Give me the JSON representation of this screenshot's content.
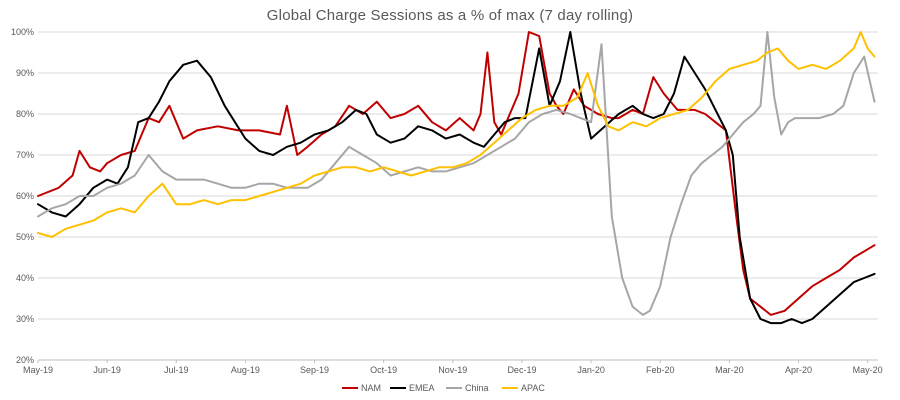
{
  "chart_data": {
    "type": "line",
    "title": "Global Charge Sessions as a % of max (7 day rolling)",
    "xlabel": "",
    "ylabel": "",
    "ylim": [
      20,
      100
    ],
    "y_ticks": [
      "20%",
      "30%",
      "40%",
      "50%",
      "60%",
      "70%",
      "80%",
      "90%",
      "100%"
    ],
    "y_tick_values": [
      20,
      30,
      40,
      50,
      60,
      70,
      80,
      90,
      100
    ],
    "x_range": [
      0,
      12.15
    ],
    "x_ticks": [
      "May-19",
      "Jun-19",
      "Jul-19",
      "Aug-19",
      "Sep-19",
      "Oct-19",
      "Nov-19",
      "Dec-19",
      "Jan-20",
      "Feb-20",
      "Mar-20",
      "Apr-20",
      "May-20"
    ],
    "x_tick_values": [
      0,
      1,
      2,
      3,
      4,
      5,
      6,
      7,
      8,
      9,
      10,
      11,
      12
    ],
    "grid": true,
    "legend_position": "bottom",
    "series": [
      {
        "name": "NAM",
        "color": "#c00000",
        "x": [
          0,
          0.3,
          0.5,
          0.6,
          0.75,
          0.9,
          1.0,
          1.2,
          1.4,
          1.6,
          1.75,
          1.9,
          2.1,
          2.3,
          2.6,
          2.9,
          3.2,
          3.5,
          3.6,
          3.75,
          3.9,
          4.1,
          4.3,
          4.5,
          4.7,
          4.9,
          5.1,
          5.3,
          5.5,
          5.7,
          5.9,
          6.1,
          6.3,
          6.4,
          6.5,
          6.6,
          6.7,
          6.8,
          6.95,
          7.1,
          7.25,
          7.4,
          7.5,
          7.6,
          7.75,
          7.9,
          8.1,
          8.3,
          8.4,
          8.5,
          8.6,
          8.75,
          8.9,
          9.05,
          9.25,
          9.5,
          9.65,
          9.8,
          9.95,
          10.1,
          10.2,
          10.3,
          10.45,
          10.6,
          10.8,
          11.0,
          11.2,
          11.4,
          11.6,
          11.8,
          12.0,
          12.1
        ],
        "values": [
          60,
          62,
          65,
          71,
          67,
          66,
          68,
          70,
          71,
          79,
          78,
          82,
          74,
          76,
          77,
          76,
          76,
          75,
          82,
          70,
          72,
          75,
          77,
          82,
          80,
          83,
          79,
          80,
          82,
          78,
          76,
          79,
          76,
          80,
          95,
          78,
          75,
          79,
          85,
          100,
          99,
          85,
          82,
          80,
          86,
          82,
          80,
          79,
          79,
          80,
          81,
          80,
          89,
          85,
          81,
          81,
          80,
          78,
          76,
          55,
          42,
          35,
          33,
          31,
          32,
          35,
          38,
          40,
          42,
          45,
          47,
          48
        ]
      },
      {
        "name": "EMEA",
        "color": "#000000",
        "x": [
          0,
          0.2,
          0.4,
          0.6,
          0.8,
          1.0,
          1.15,
          1.3,
          1.45,
          1.6,
          1.75,
          1.9,
          2.1,
          2.3,
          2.5,
          2.7,
          2.85,
          3.0,
          3.2,
          3.4,
          3.6,
          3.8,
          4.0,
          4.2,
          4.4,
          4.6,
          4.75,
          4.9,
          5.1,
          5.3,
          5.5,
          5.7,
          5.9,
          6.1,
          6.3,
          6.45,
          6.6,
          6.75,
          6.9,
          7.05,
          7.25,
          7.4,
          7.55,
          7.7,
          7.85,
          8.0,
          8.2,
          8.4,
          8.6,
          8.75,
          8.9,
          9.05,
          9.2,
          9.35,
          9.5,
          9.65,
          9.8,
          9.95,
          10.05,
          10.15,
          10.3,
          10.45,
          10.6,
          10.75,
          10.9,
          11.05,
          11.2,
          11.4,
          11.6,
          11.8,
          11.95,
          12.1
        ],
        "values": [
          58,
          56,
          55,
          58,
          62,
          64,
          63,
          67,
          78,
          79,
          83,
          88,
          92,
          93,
          89,
          82,
          78,
          74,
          71,
          70,
          72,
          73,
          75,
          76,
          78,
          81,
          80,
          75,
          73,
          74,
          77,
          76,
          74,
          75,
          73,
          72,
          75,
          78,
          79,
          79,
          96,
          82,
          88,
          100,
          85,
          74,
          77,
          80,
          82,
          80,
          79,
          80,
          85,
          94,
          90,
          86,
          81,
          76,
          70,
          50,
          35,
          30,
          29,
          29,
          30,
          29,
          30,
          33,
          36,
          39,
          40,
          41
        ]
      },
      {
        "name": "China",
        "color": "#a6a6a6",
        "x": [
          0,
          0.2,
          0.4,
          0.6,
          0.8,
          1.0,
          1.2,
          1.4,
          1.6,
          1.8,
          2.0,
          2.2,
          2.4,
          2.6,
          2.8,
          3.0,
          3.2,
          3.4,
          3.6,
          3.75,
          3.9,
          4.1,
          4.3,
          4.5,
          4.7,
          4.9,
          5.1,
          5.3,
          5.5,
          5.7,
          5.9,
          6.1,
          6.3,
          6.5,
          6.7,
          6.9,
          7.1,
          7.3,
          7.5,
          7.7,
          7.85,
          8.0,
          8.15,
          8.3,
          8.45,
          8.6,
          8.75,
          8.85,
          9.0,
          9.15,
          9.3,
          9.45,
          9.6,
          9.75,
          9.9,
          10.05,
          10.2,
          10.35,
          10.45,
          10.55,
          10.65,
          10.75,
          10.85,
          10.95,
          11.1,
          11.3,
          11.5,
          11.65,
          11.8,
          11.95,
          12.1
        ],
        "values": [
          55,
          57,
          58,
          60,
          60,
          62,
          63,
          65,
          70,
          66,
          64,
          64,
          64,
          63,
          62,
          62,
          63,
          63,
          62,
          62,
          62,
          64,
          68,
          72,
          70,
          68,
          65,
          66,
          67,
          66,
          66,
          67,
          68,
          70,
          72,
          74,
          78,
          80,
          81,
          80,
          79,
          78,
          97,
          55,
          40,
          33,
          31,
          32,
          38,
          50,
          58,
          65,
          68,
          70,
          72,
          75,
          78,
          80,
          82,
          100,
          84,
          75,
          78,
          79,
          79,
          79,
          80,
          82,
          90,
          94,
          83
        ]
      },
      {
        "name": "APAC",
        "color": "#ffc000",
        "x": [
          0,
          0.2,
          0.4,
          0.6,
          0.8,
          1.0,
          1.2,
          1.4,
          1.6,
          1.8,
          2.0,
          2.2,
          2.4,
          2.6,
          2.8,
          3.0,
          3.2,
          3.4,
          3.6,
          3.8,
          4.0,
          4.2,
          4.4,
          4.6,
          4.8,
          5.0,
          5.2,
          5.4,
          5.6,
          5.8,
          6.0,
          6.2,
          6.4,
          6.6,
          6.8,
          7.0,
          7.2,
          7.4,
          7.6,
          7.8,
          7.95,
          8.1,
          8.25,
          8.4,
          8.6,
          8.8,
          9.0,
          9.2,
          9.4,
          9.6,
          9.8,
          10.0,
          10.2,
          10.4,
          10.55,
          10.7,
          10.85,
          11.0,
          11.2,
          11.4,
          11.6,
          11.8,
          11.9,
          12.0,
          12.1
        ],
        "values": [
          51,
          50,
          52,
          53,
          54,
          56,
          57,
          56,
          60,
          63,
          58,
          58,
          59,
          58,
          59,
          59,
          60,
          61,
          62,
          63,
          65,
          66,
          67,
          67,
          66,
          67,
          66,
          65,
          66,
          67,
          67,
          68,
          70,
          73,
          76,
          79,
          81,
          82,
          82,
          84,
          90,
          82,
          77,
          76,
          78,
          77,
          79,
          80,
          81,
          84,
          88,
          91,
          92,
          93,
          95,
          96,
          93,
          91,
          92,
          91,
          93,
          96,
          100,
          96,
          94
        ]
      }
    ]
  }
}
